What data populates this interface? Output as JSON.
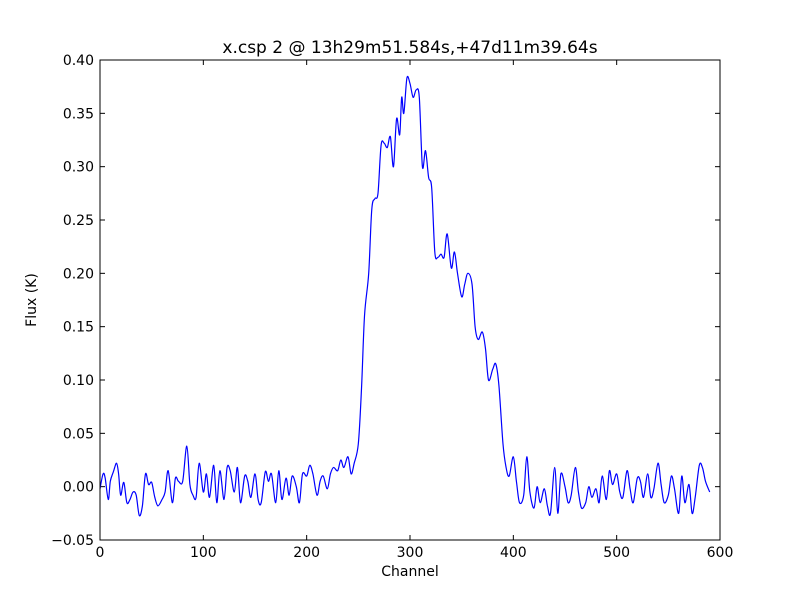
{
  "chart_data": {
    "type": "line",
    "title": "x.csp 2 @ 13h29m51.584s,+47d11m39.64s",
    "xlabel": "Channel",
    "ylabel": "Flux (K)",
    "xlim": [
      0,
      600
    ],
    "ylim": [
      -0.05,
      0.4
    ],
    "xticks": [
      "0",
      "100",
      "200",
      "300",
      "400",
      "500",
      "600"
    ],
    "yticks": [
      "−0.05",
      "0.00",
      "0.05",
      "0.10",
      "0.15",
      "0.20",
      "0.25",
      "0.30",
      "0.35",
      "0.40"
    ],
    "grid": false,
    "line_color": "#0000ff",
    "x": [
      0,
      3,
      5,
      8,
      10,
      13,
      16,
      18,
      20,
      23,
      26,
      29,
      32,
      35,
      38,
      41,
      44,
      47,
      50,
      53,
      56,
      60,
      63,
      66,
      70,
      73,
      76,
      80,
      84,
      87,
      90,
      93,
      96,
      100,
      103,
      106,
      110,
      113,
      116,
      120,
      123,
      126,
      130,
      133,
      136,
      140,
      143,
      146,
      150,
      153,
      156,
      160,
      163,
      166,
      170,
      173,
      176,
      180,
      183,
      186,
      190,
      193,
      196,
      200,
      203,
      206,
      210,
      213,
      216,
      220,
      223,
      226,
      230,
      233,
      236,
      240,
      243,
      246,
      250,
      253,
      256,
      260,
      263,
      266,
      269,
      272,
      275,
      278,
      281,
      284,
      287,
      290,
      292,
      294,
      297,
      300,
      303,
      306,
      309,
      312,
      315,
      318,
      321,
      324,
      327,
      330,
      333,
      336,
      340,
      343,
      346,
      350,
      353,
      356,
      360,
      363,
      366,
      370,
      373,
      376,
      380,
      383,
      386,
      390,
      393,
      396,
      400,
      403,
      406,
      410,
      413,
      416,
      420,
      423,
      426,
      430,
      433,
      436,
      440,
      443,
      446,
      450,
      453,
      456,
      460,
      463,
      466,
      470,
      473,
      476,
      480,
      483,
      486,
      490,
      493,
      496,
      500,
      503,
      506,
      510,
      513,
      516,
      520,
      523,
      526,
      530,
      533,
      536,
      540,
      543,
      546,
      550,
      553,
      556,
      560,
      563,
      566,
      570,
      573,
      576,
      580,
      583,
      586,
      590
    ],
    "y": [
      -0.002,
      0.012,
      0.008,
      -0.012,
      0.005,
      0.014,
      0.022,
      0.012,
      -0.008,
      0.004,
      -0.015,
      -0.012,
      -0.005,
      -0.008,
      -0.027,
      -0.018,
      0.012,
      0.002,
      0.004,
      -0.01,
      -0.018,
      -0.012,
      -0.005,
      0.015,
      -0.015,
      0.008,
      0.005,
      0.005,
      0.038,
      0.002,
      -0.008,
      -0.01,
      0.022,
      -0.005,
      0.012,
      -0.01,
      0.02,
      -0.015,
      0.015,
      -0.012,
      0.018,
      0.015,
      -0.005,
      0.018,
      -0.015,
      0.01,
      0.005,
      -0.01,
      0.012,
      -0.012,
      -0.015,
      0.014,
      0.005,
      0.012,
      -0.015,
      0.015,
      -0.012,
      0.008,
      -0.008,
      0.01,
      0.0,
      -0.015,
      0.012,
      0.01,
      0.02,
      0.012,
      -0.008,
      0.005,
      0.01,
      -0.002,
      0.012,
      0.018,
      0.015,
      0.025,
      0.018,
      0.028,
      0.012,
      0.022,
      0.04,
      0.09,
      0.16,
      0.2,
      0.26,
      0.27,
      0.275,
      0.32,
      0.322,
      0.318,
      0.328,
      0.3,
      0.345,
      0.33,
      0.365,
      0.35,
      0.383,
      0.378,
      0.365,
      0.372,
      0.365,
      0.3,
      0.315,
      0.29,
      0.28,
      0.22,
      0.215,
      0.218,
      0.215,
      0.237,
      0.205,
      0.22,
      0.2,
      0.178,
      0.19,
      0.2,
      0.19,
      0.15,
      0.138,
      0.145,
      0.13,
      0.1,
      0.11,
      0.115,
      0.095,
      0.04,
      0.018,
      0.01,
      0.028,
      0.005,
      -0.015,
      -0.008,
      0.028,
      -0.005,
      -0.02,
      0.0,
      -0.015,
      -0.002,
      -0.018,
      -0.025,
      0.018,
      -0.025,
      0.012,
      0.0,
      -0.015,
      -0.008,
      0.018,
      -0.005,
      -0.02,
      -0.015,
      0.0,
      -0.01,
      -0.002,
      -0.015,
      0.01,
      -0.012,
      0.015,
      0.002,
      0.012,
      -0.005,
      -0.01,
      0.015,
      -0.002,
      -0.015,
      0.008,
      0.005,
      -0.01,
      0.012,
      -0.01,
      -0.002,
      0.022,
      0.002,
      -0.015,
      -0.008,
      0.01,
      -0.002,
      -0.025,
      0.01,
      -0.015,
      0.002,
      -0.025,
      -0.01,
      0.02,
      0.018,
      0.005,
      -0.005
    ]
  }
}
